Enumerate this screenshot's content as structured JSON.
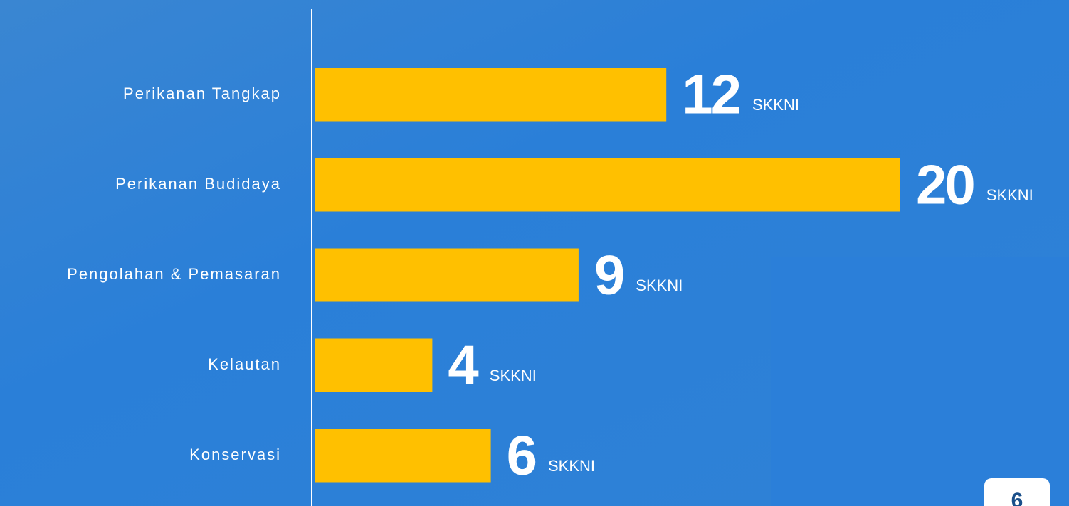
{
  "chart_data": {
    "type": "barh",
    "categories": [
      "Perikanan Tangkap",
      "Perikanan Budidaya",
      "Pengolahan & Pemasaran",
      "Kelautan",
      "Konservasi"
    ],
    "values": [
      12,
      20,
      9,
      4,
      6
    ],
    "unit": "SKKNI",
    "color": "#ffc000"
  },
  "page_number": "6"
}
